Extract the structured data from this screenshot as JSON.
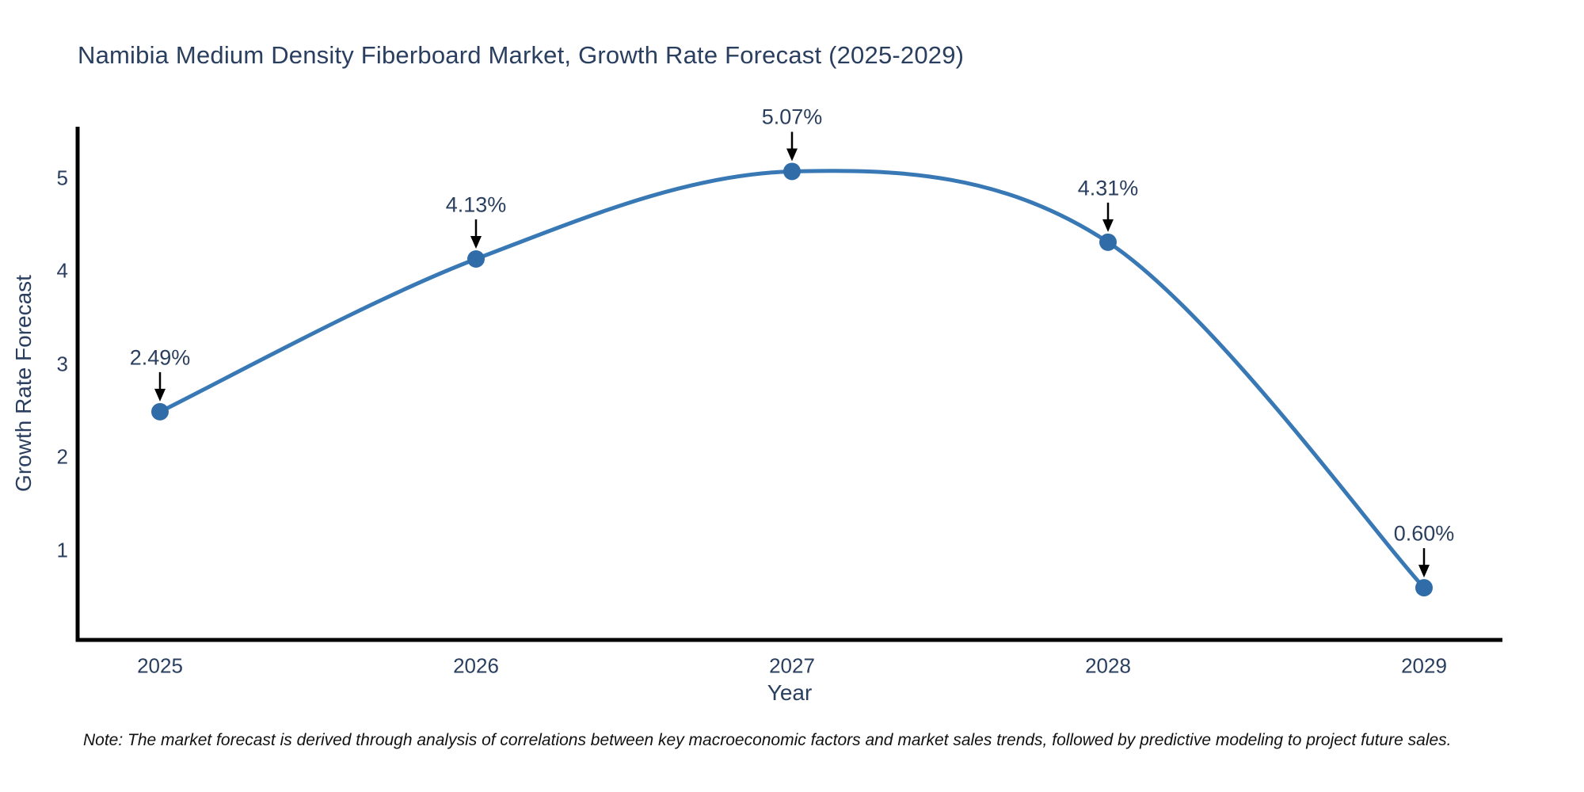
{
  "chart": {
    "title": "Namibia Medium Density Fiberboard Market, Growth Rate Forecast (2025-2029)",
    "xlabel": "Year",
    "ylabel": "Growth Rate Forecast"
  },
  "note": "Note: The market forecast is derived through analysis of correlations between key macroeconomic factors and market sales trends, followed by predictive modeling to project future sales.",
  "chart_data": {
    "type": "line",
    "title": "Namibia Medium Density Fiberboard Market, Growth Rate Forecast (2025-2029)",
    "xlabel": "Year",
    "ylabel": "Growth Rate Forecast",
    "categories": [
      "2025",
      "2026",
      "2027",
      "2028",
      "2029"
    ],
    "values": [
      2.49,
      4.13,
      5.07,
      4.31,
      0.6
    ],
    "point_labels": [
      "2.49%",
      "4.13%",
      "5.07%",
      "4.31%",
      "0.60%"
    ],
    "yticks": [
      1,
      2,
      3,
      4,
      5
    ],
    "ylim": [
      0.04,
      5.55
    ],
    "line_shape": "spline",
    "grid": false,
    "legend": false,
    "colors": {
      "line": "#3878b4",
      "marker": "#306da8",
      "axis": "#000000",
      "text": "#2a3f5f",
      "annotation_arrow": "#000000",
      "note_text": "#111111",
      "background": "#ffffff"
    }
  }
}
